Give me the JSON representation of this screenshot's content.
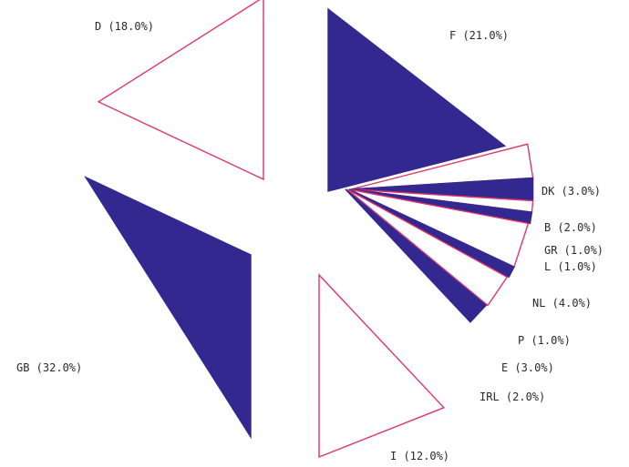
{
  "chart_data": {
    "type": "pie",
    "exploded": true,
    "slices": [
      {
        "code": "F",
        "label": "F (21.0%)",
        "value": 21.0,
        "fill": "#33288f",
        "edge": "#33288f"
      },
      {
        "code": "DK",
        "label": "DK (3.0%)",
        "value": 3.0,
        "fill": "#ffffff",
        "edge": "#e0346a"
      },
      {
        "code": "B",
        "label": "B (2.0%)",
        "value": 2.0,
        "fill": "#33288f",
        "edge": "#33288f"
      },
      {
        "code": "GR",
        "label": "GR (1.0%)",
        "value": 1.0,
        "fill": "#ffffff",
        "edge": "#e0346a"
      },
      {
        "code": "L",
        "label": "L (1.0%)",
        "value": 1.0,
        "fill": "#33288f",
        "edge": "#33288f"
      },
      {
        "code": "NL",
        "label": "NL (4.0%)",
        "value": 4.0,
        "fill": "#ffffff",
        "edge": "#e0346a"
      },
      {
        "code": "P",
        "label": "P (1.0%)",
        "value": 1.0,
        "fill": "#33288f",
        "edge": "#33288f"
      },
      {
        "code": "E",
        "label": "E (3.0%)",
        "value": 3.0,
        "fill": "#ffffff",
        "edge": "#e0346a"
      },
      {
        "code": "IRL",
        "label": "IRL (2.0%)",
        "value": 2.0,
        "fill": "#33288f",
        "edge": "#33288f"
      },
      {
        "code": "I",
        "label": "I (12.0%)",
        "value": 12.0,
        "fill": "#ffffff",
        "edge": "#e0346a"
      },
      {
        "code": "GB",
        "label": "GB (32.0%)",
        "value": 32.0,
        "fill": "#33288f",
        "edge": "#33288f"
      },
      {
        "code": "D",
        "label": "D (18.0%)",
        "value": 18.0,
        "fill": "#ffffff",
        "edge": "#e0346a"
      }
    ],
    "title": "",
    "legend": "none"
  }
}
